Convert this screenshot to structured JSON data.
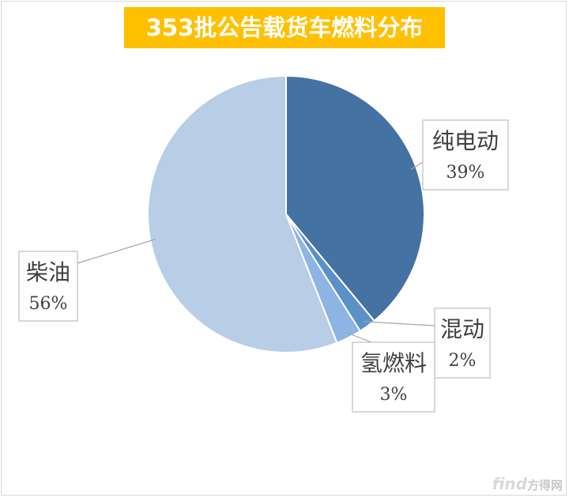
{
  "chart_data": {
    "type": "pie",
    "title": "353批公告载货车燃料分布",
    "slices": [
      {
        "label": "纯电动",
        "value": 39,
        "value_label": "39%",
        "color": "#4472a2"
      },
      {
        "label": "混动",
        "value": 2,
        "value_label": "2%",
        "color": "#5b91c9"
      },
      {
        "label": "氢燃料",
        "value": 3,
        "value_label": "3%",
        "color": "#8db4e2"
      },
      {
        "label": "柴油",
        "value": 56,
        "value_label": "56%",
        "color": "#b8cde6"
      }
    ],
    "start_angle": "12 o'clock",
    "direction": "clockwise",
    "legend": "none",
    "title_background": "#ffc000"
  },
  "watermark": {
    "brand": "find",
    "suffix": "方得网"
  }
}
